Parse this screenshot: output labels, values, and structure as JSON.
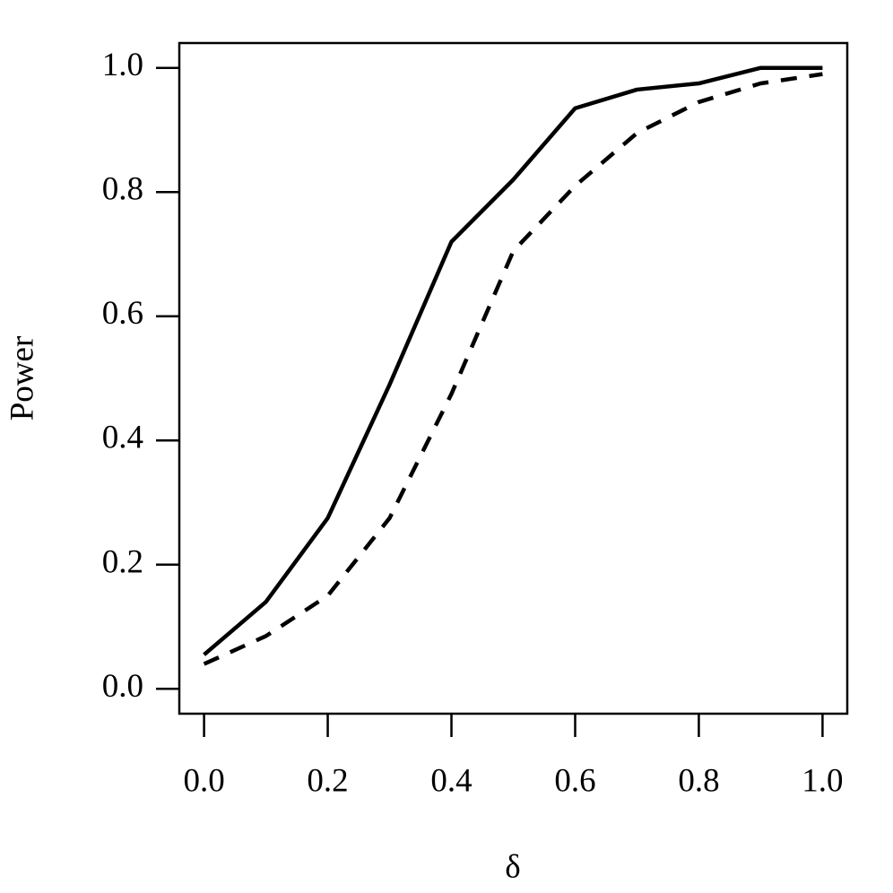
{
  "chart_data": {
    "type": "line",
    "x_label": "δ",
    "y_label": "Power",
    "x": [
      0.0,
      0.1,
      0.2,
      0.3,
      0.4,
      0.5,
      0.6,
      0.7,
      0.8,
      0.9,
      1.0
    ],
    "series": [
      {
        "color": "#000000",
        "line_style": "solid",
        "values": [
          0.055,
          0.14,
          0.275,
          0.49,
          0.72,
          0.82,
          0.935,
          0.965,
          0.975,
          1.0,
          1.0
        ]
      },
      {
        "color": "#000000",
        "line_style": "dashed",
        "values": [
          0.04,
          0.085,
          0.15,
          0.275,
          0.475,
          0.705,
          0.81,
          0.895,
          0.945,
          0.975,
          0.99
        ]
      }
    ],
    "xlim": [
      -0.04,
      1.04
    ],
    "ylim": [
      -0.04,
      1.04
    ],
    "xticks": [
      {
        "value": 0,
        "label": "0.0"
      },
      0.2,
      0.4,
      0.6,
      0.8,
      {
        "value": 1,
        "label": "1.0"
      }
    ],
    "yticks": [
      {
        "value": 0,
        "label": "0.0"
      },
      0.2,
      0.4,
      0.6,
      0.8,
      {
        "value": 1,
        "label": "1.0"
      }
    ],
    "grid": false
  }
}
